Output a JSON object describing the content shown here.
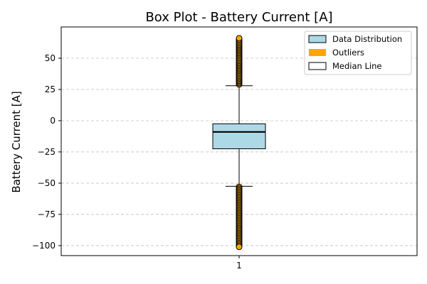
{
  "chart_data": {
    "type": "boxplot",
    "title": "Box Plot - Battery Current [A]",
    "xlabel": "",
    "ylabel": "Battery Current [A]",
    "categories": [
      "1"
    ],
    "ylim": [
      -108,
      75
    ],
    "yticks": [
      50,
      25,
      0,
      -25,
      -50,
      -75,
      -100
    ],
    "grid": "horizontal dashed",
    "legend_position": "top-right",
    "colors": {
      "box_fill": "#add8e6",
      "outlier": "#ffa500",
      "median": "#000000",
      "grid": "#c0c0c0"
    },
    "box": {
      "q1": -22.5,
      "median": -9,
      "q3": -2.5,
      "whisker_low": -52.5,
      "whisker_high": 28
    },
    "outliers": [
      29,
      30,
      31,
      32,
      33,
      34,
      35,
      36,
      37,
      38,
      39,
      40,
      41,
      42,
      43,
      44,
      45,
      46,
      47,
      48,
      49,
      50,
      51,
      52,
      53,
      54,
      55,
      56,
      57,
      58,
      59,
      60,
      61,
      62,
      63,
      64,
      65,
      66,
      -53,
      -54,
      -55,
      -56,
      -57,
      -58,
      -59,
      -60,
      -61,
      -62,
      -63,
      -64,
      -65,
      -66,
      -67,
      -68,
      -69,
      -70,
      -71,
      -72,
      -73,
      -74,
      -75,
      -76,
      -77,
      -78,
      -79,
      -80,
      -81,
      -82,
      -83,
      -84,
      -85,
      -86,
      -87,
      -88,
      -89,
      -90,
      -91,
      -92,
      -93,
      -94,
      -95,
      -96,
      -97,
      -98,
      -99,
      -100,
      -101
    ],
    "legend": [
      {
        "label": "Data Distribution",
        "swatch": "box"
      },
      {
        "label": "Outliers",
        "swatch": "bar"
      },
      {
        "label": "Median Line",
        "swatch": "line"
      }
    ]
  }
}
